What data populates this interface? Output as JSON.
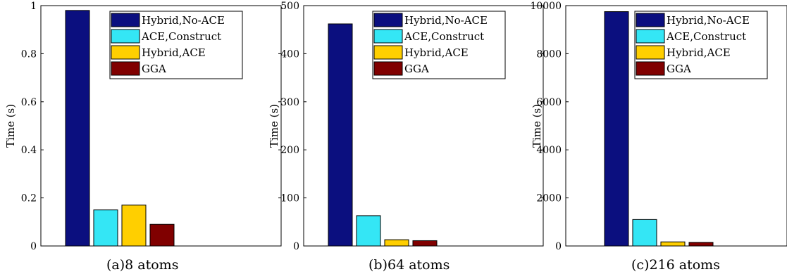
{
  "panels": [
    {
      "caption": "(a)8 atoms"
    },
    {
      "caption": "(b)64 atoms"
    },
    {
      "caption": "(c)216 atoms"
    }
  ],
  "legend_colors": [
    "#0b0f7f",
    "#34e6f5",
    "#ffcf00",
    "#800000"
  ],
  "chart_data": [
    {
      "type": "bar",
      "title": "",
      "xlabel": "",
      "ylabel": "Time (s)",
      "ylim": [
        0,
        1
      ],
      "yticks": [
        0,
        0.2,
        0.4,
        0.6,
        0.8,
        1
      ],
      "ytick_labels": [
        "0",
        "0.2",
        "0.4",
        "0.6",
        "0.8",
        "1"
      ],
      "grid": false,
      "legend_position": "top-right",
      "series": [
        {
          "name": "Hybrid,No-ACE",
          "values": [
            0.98
          ]
        },
        {
          "name": "ACE,Construct",
          "values": [
            0.15
          ]
        },
        {
          "name": "Hybrid,ACE",
          "values": [
            0.17
          ]
        },
        {
          "name": "GGA",
          "values": [
            0.09
          ]
        }
      ]
    },
    {
      "type": "bar",
      "title": "",
      "xlabel": "",
      "ylabel": "Time (s)",
      "ylim": [
        0,
        500
      ],
      "yticks": [
        0,
        100,
        200,
        300,
        400,
        500
      ],
      "ytick_labels": [
        "0",
        "100",
        "200",
        "300",
        "400",
        "500"
      ],
      "grid": false,
      "legend_position": "top-right",
      "series": [
        {
          "name": "Hybrid,No-ACE",
          "values": [
            462
          ]
        },
        {
          "name": "ACE,Construct",
          "values": [
            63
          ]
        },
        {
          "name": "Hybrid,ACE",
          "values": [
            13
          ]
        },
        {
          "name": "GGA",
          "values": [
            11
          ]
        }
      ]
    },
    {
      "type": "bar",
      "title": "",
      "xlabel": "",
      "ylabel": "Time (s)",
      "ylim": [
        0,
        10000
      ],
      "yticks": [
        0,
        2000,
        4000,
        6000,
        8000,
        10000
      ],
      "ytick_labels": [
        "0",
        "2000",
        "4000",
        "6000",
        "8000",
        "10000"
      ],
      "grid": false,
      "legend_position": "top-right",
      "series": [
        {
          "name": "Hybrid,No-ACE",
          "values": [
            9750
          ]
        },
        {
          "name": "ACE,Construct",
          "values": [
            1100
          ]
        },
        {
          "name": "Hybrid,ACE",
          "values": [
            170
          ]
        },
        {
          "name": "GGA",
          "values": [
            150
          ]
        }
      ]
    }
  ]
}
